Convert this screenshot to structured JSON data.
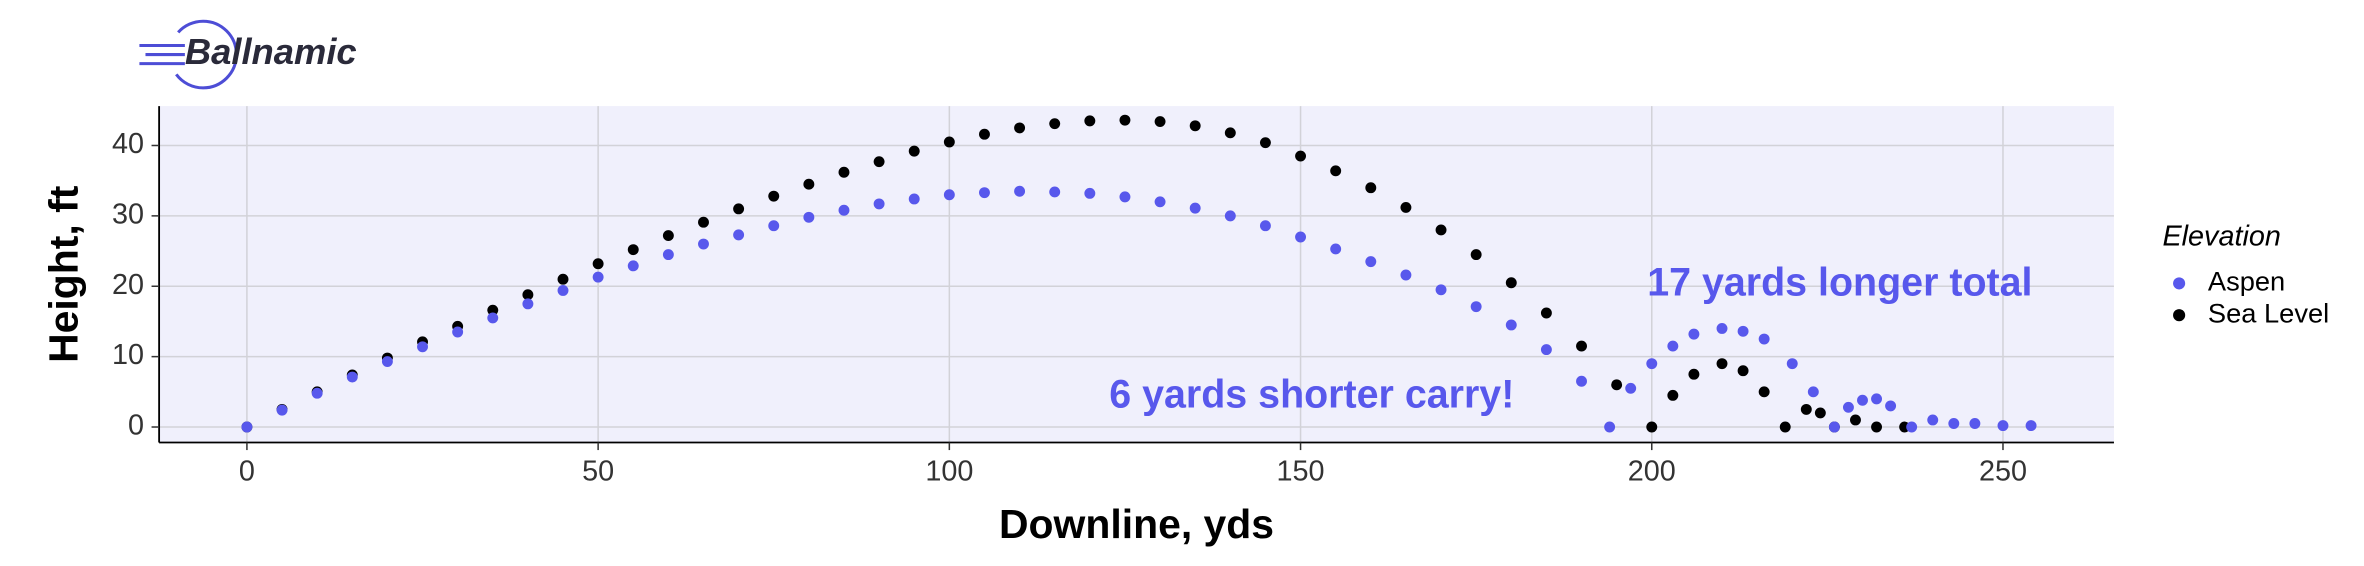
{
  "logo": "Ballnamic",
  "chart_data": {
    "type": "scatter",
    "xlabel": "Downline, yds",
    "ylabel": "Height, ft",
    "xlim": [
      -12.5,
      265.8
    ],
    "ylim": [
      -2.2,
      45.6
    ],
    "xticks": [
      0,
      50,
      100,
      150,
      200,
      250
    ],
    "yticks": [
      0,
      10,
      20,
      30,
      40
    ],
    "grid": true,
    "legend_title": "Elevation",
    "legend": "right",
    "annotations": [
      "17 yards longer total",
      "6 yards shorter carry!"
    ],
    "series": [
      {
        "name": "Aspen",
        "color": "#5858ec",
        "x": [
          0,
          5,
          10,
          15,
          20,
          25,
          30,
          35,
          40,
          45,
          50,
          55,
          60,
          65,
          70,
          75,
          80,
          85,
          90,
          95,
          100,
          105,
          110,
          115,
          120,
          125,
          130,
          135,
          140,
          145,
          150,
          155,
          160,
          165,
          170,
          175,
          180,
          185,
          190,
          194,
          197,
          200,
          203,
          206,
          210,
          213,
          216,
          220,
          223,
          226,
          228,
          230,
          232,
          234,
          237,
          240,
          243,
          246,
          250,
          254
        ],
        "values": [
          0,
          2.4,
          4.8,
          7.1,
          9.3,
          11.4,
          13.5,
          15.5,
          17.5,
          19.4,
          21.3,
          22.9,
          24.5,
          26,
          27.3,
          28.6,
          29.8,
          30.8,
          31.7,
          32.4,
          33,
          33.3,
          33.5,
          33.4,
          33.2,
          32.7,
          32,
          31.1,
          30,
          28.6,
          27,
          25.3,
          23.5,
          21.6,
          19.5,
          17.1,
          14.5,
          11,
          6.5,
          0,
          5.5,
          9,
          11.5,
          13.2,
          14,
          13.6,
          12.5,
          9,
          5,
          0,
          2.8,
          3.8,
          4,
          3,
          0,
          1,
          0.5,
          0.5,
          0.2,
          0.2
        ]
      },
      {
        "name": "Sea Level",
        "color": "#000000",
        "x": [
          0,
          5,
          10,
          15,
          20,
          25,
          30,
          35,
          40,
          45,
          50,
          55,
          60,
          65,
          70,
          75,
          80,
          85,
          90,
          95,
          100,
          105,
          110,
          115,
          120,
          125,
          130,
          135,
          140,
          145,
          150,
          155,
          160,
          165,
          170,
          175,
          180,
          185,
          190,
          195,
          200,
          203,
          206,
          210,
          213,
          216,
          219,
          222,
          224,
          226,
          229,
          232,
          236
        ],
        "values": [
          0,
          2.5,
          5,
          7.4,
          9.8,
          12.1,
          14.3,
          16.6,
          18.8,
          21,
          23.2,
          25.2,
          27.2,
          29.1,
          31,
          32.8,
          34.5,
          36.2,
          37.7,
          39.2,
          40.5,
          41.6,
          42.5,
          43.1,
          43.5,
          43.6,
          43.4,
          42.8,
          41.8,
          40.4,
          38.5,
          36.4,
          34,
          31.2,
          28,
          24.5,
          20.5,
          16.2,
          11.5,
          6,
          0,
          4.5,
          7.5,
          9,
          8,
          5,
          0,
          2.5,
          2,
          0,
          1,
          0,
          0
        ]
      }
    ]
  }
}
